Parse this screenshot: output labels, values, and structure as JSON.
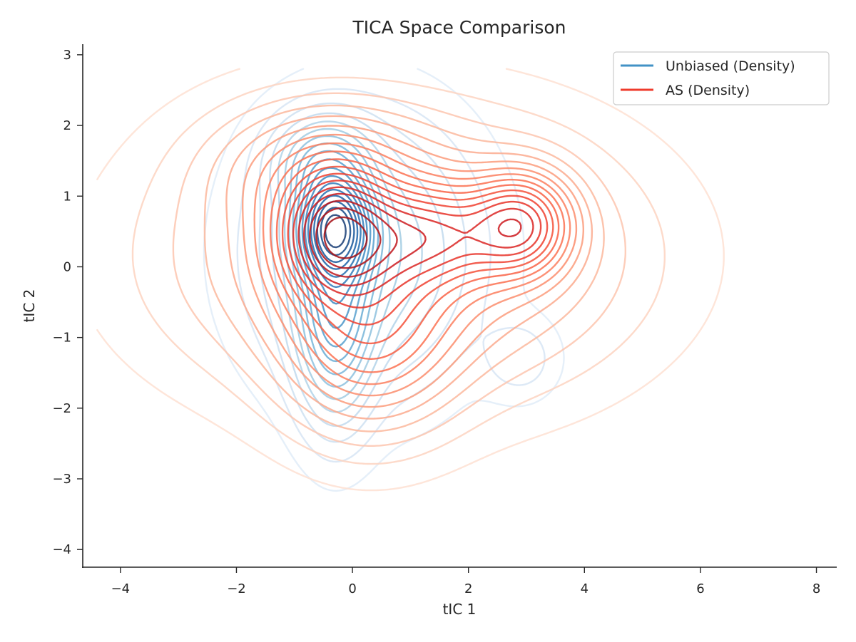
{
  "chart_data": {
    "type": "contour",
    "title": "TICA Space Comparison",
    "xlabel": "tIC 1",
    "ylabel": "tIC 2",
    "xlim": [
      -4.65,
      8.35
    ],
    "ylim": [
      -4.25,
      3.15
    ],
    "xticks": [
      -4,
      -2,
      0,
      2,
      4,
      6,
      8
    ],
    "yticks": [
      -4,
      -3,
      -2,
      -1,
      0,
      1,
      2,
      3
    ],
    "xtick_labels": [
      "−4",
      "−2",
      "0",
      "2",
      "4",
      "6",
      "8"
    ],
    "ytick_labels": [
      "−4",
      "−3",
      "−2",
      "−1",
      "0",
      "1",
      "2",
      "3"
    ],
    "grid": false,
    "legend_position": "top-right",
    "series": [
      {
        "name": "Unbiased (Density)",
        "color": "#4292c6",
        "colormap": "Blues",
        "components": [
          {
            "weight": 1.0,
            "mx": -0.3,
            "my": 0.55,
            "sx": 0.38,
            "sy": 0.42
          },
          {
            "weight": 0.45,
            "mx": -0.3,
            "my": -0.6,
            "sx": 0.4,
            "sy": 0.9
          },
          {
            "weight": 0.3,
            "mx": -0.5,
            "my": 1.45,
            "sx": 0.5,
            "sy": 0.4
          },
          {
            "weight": 0.22,
            "mx": 0.2,
            "my": 0.2,
            "sx": 1.1,
            "sy": 1.1
          },
          {
            "weight": 0.05,
            "mx": 2.9,
            "my": -1.3,
            "sx": 0.4,
            "sy": 0.35
          }
        ]
      },
      {
        "name": "AS (Density)",
        "color": "#ef3b2c",
        "colormap": "Reds",
        "components": [
          {
            "weight": 1.0,
            "mx": -0.3,
            "my": 0.45,
            "sx": 0.6,
            "sy": 0.55
          },
          {
            "weight": 0.75,
            "mx": 2.9,
            "my": 0.6,
            "sx": 0.55,
            "sy": 0.45
          },
          {
            "weight": 0.6,
            "mx": 1.3,
            "my": 0.45,
            "sx": 0.9,
            "sy": 0.45
          },
          {
            "weight": 0.45,
            "mx": 0.3,
            "my": -0.9,
            "sx": 0.9,
            "sy": 0.8
          },
          {
            "weight": 0.38,
            "mx": 0.8,
            "my": 0.15,
            "sx": 2.1,
            "sy": 1.05
          },
          {
            "weight": 0.25,
            "mx": -0.5,
            "my": 1.4,
            "sx": 1.1,
            "sy": 0.55
          }
        ]
      }
    ]
  }
}
